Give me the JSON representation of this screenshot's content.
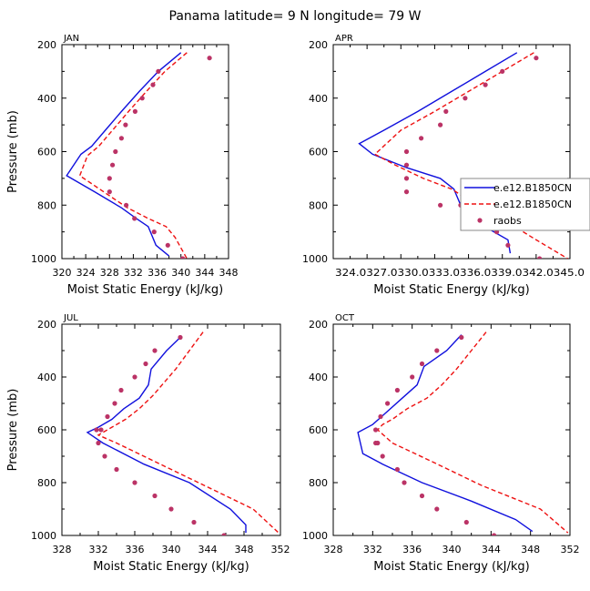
{
  "title": "Panama  latitude= 9 N longitude= 79 W",
  "chart_data": [
    {
      "type": "line",
      "panel": "JAN",
      "xlabel": "Moist Static Energy (kJ/kg)",
      "ylabel": "Pressure (mb)",
      "xlim": [
        320,
        348
      ],
      "ylim": [
        1000,
        200
      ],
      "xticks": [
        320,
        324,
        328,
        332,
        336,
        340,
        344,
        348
      ],
      "xtick_labels": [
        "320",
        "324",
        "328",
        "332",
        "336",
        "340",
        "344",
        "348"
      ],
      "yticks": [
        200,
        400,
        600,
        800,
        1000
      ],
      "yticks_labels": [
        "200",
        "400",
        "600",
        "800",
        "1000"
      ],
      "series": [
        {
          "name": "e.e12.B1850CN",
          "style": "solid",
          "color": "#1010dd",
          "x": [
            340.0,
            336.2,
            333.0,
            330.0,
            327.3,
            325.0,
            323.2,
            320.8,
            325.5,
            330.0,
            332.5,
            334.5,
            335.8,
            338.0
          ],
          "y": [
            230,
            300,
            375,
            450,
            520,
            580,
            610,
            690,
            750,
            810,
            850,
            880,
            950,
            990
          ]
        },
        {
          "name": "e.e12.B1850CN",
          "style": "dashed",
          "color": "#ee1111",
          "x": [
            341.0,
            337.3,
            334.2,
            331.2,
            328.5,
            326.2,
            324.3,
            323.0,
            327.0,
            331.0,
            334.5,
            337.5,
            339.0,
            341.0
          ],
          "y": [
            230,
            300,
            375,
            450,
            520,
            580,
            615,
            690,
            750,
            810,
            850,
            880,
            920,
            1000
          ]
        },
        {
          "name": "raobs",
          "style": "marker",
          "color": "#bb3366",
          "x": [
            344.8,
            336.2,
            335.3,
            333.5,
            332.3,
            330.7,
            330.0,
            329.0,
            328.5,
            328.0,
            328.0,
            330.8,
            332.2,
            335.5,
            337.8,
            340.3
          ],
          "y": [
            250,
            300,
            350,
            400,
            450,
            500,
            550,
            600,
            650,
            700,
            750,
            800,
            850,
            900,
            950,
            1000
          ]
        }
      ]
    },
    {
      "type": "line",
      "panel": "APR",
      "xlabel": "Moist Static Energy (kJ/kg)",
      "ylabel": "",
      "xlim": [
        324.0,
        345.0
      ],
      "ylim": [
        1000,
        200
      ],
      "xticks": [
        324.0,
        327.0,
        330.0,
        333.0,
        336.0,
        339.0,
        342.0,
        345.0
      ],
      "xtick_labels": [
        "324.0",
        "327.0",
        "330.0",
        "333.0",
        "336.0",
        "339.0",
        "342.0",
        "345.0"
      ],
      "tick_label_strip": "324.0327.0330.0333.0336.0339.0342.0345.0",
      "yticks": [
        200,
        400,
        600,
        800,
        1000
      ],
      "yticks_labels": [
        "200",
        "400",
        "600",
        "800",
        "1000"
      ],
      "series": [
        {
          "name": "e.e12.B1850CN",
          "style": "solid",
          "color": "#1010dd",
          "x": [
            340.3,
            337.5,
            334.5,
            331.5,
            328.5,
            326.3,
            327.5,
            330.5,
            333.5,
            334.7,
            335.5,
            337.0,
            339.5,
            339.7
          ],
          "y": [
            230,
            300,
            375,
            450,
            520,
            570,
            610,
            660,
            700,
            740,
            820,
            870,
            930,
            980
          ]
        },
        {
          "name": "e.e12.B1850CN",
          "style": "dashed",
          "color": "#ee1111",
          "x": [
            341.8,
            339.0,
            336.0,
            333.0,
            330.0,
            327.7,
            329.5,
            332.0,
            334.5,
            336.0,
            337.5,
            339.7,
            342.0,
            344.8
          ],
          "y": [
            230,
            300,
            375,
            450,
            520,
            610,
            650,
            700,
            740,
            780,
            820,
            870,
            930,
            1000
          ]
        },
        {
          "name": "raobs",
          "style": "marker",
          "color": "#bb3366",
          "x": [
            342.0,
            339.0,
            337.5,
            335.7,
            334.0,
            333.5,
            331.8,
            330.5,
            330.5,
            330.5,
            330.5,
            333.5,
            335.3,
            336.0,
            338.5,
            339.5,
            342.3
          ],
          "y": [
            250,
            300,
            350,
            400,
            450,
            500,
            550,
            600,
            650,
            700,
            750,
            800,
            800,
            850,
            900,
            950,
            1000
          ]
        }
      ],
      "legend": {
        "entries": [
          "e.e12.B1850CN",
          "e.e12.B1850CN",
          "raobs"
        ],
        "position": "right, overflowing frame"
      }
    },
    {
      "type": "line",
      "panel": "JUL",
      "xlabel": "Moist Static Energy (kJ/kg)",
      "ylabel": "Pressure (mb)",
      "xlim": [
        328,
        352
      ],
      "ylim": [
        1000,
        200
      ],
      "xticks": [
        328,
        332,
        336,
        340,
        344,
        348,
        352
      ],
      "xtick_labels": [
        "328",
        "332",
        "336",
        "340",
        "344",
        "348",
        "352"
      ],
      "yticks": [
        200,
        400,
        600,
        800,
        1000
      ],
      "yticks_labels": [
        "200",
        "400",
        "600",
        "800",
        "1000"
      ],
      "series": [
        {
          "name": "e.e12.B1850CN",
          "style": "solid",
          "color": "#1010dd",
          "x": [
            341.0,
            339.5,
            337.8,
            337.5,
            336.5,
            334.8,
            333.5,
            332.0,
            330.8,
            332.5,
            337.0,
            342.0,
            346.5,
            348.2,
            348.2
          ],
          "y": [
            250,
            300,
            370,
            430,
            480,
            520,
            560,
            590,
            610,
            650,
            730,
            800,
            900,
            960,
            990
          ]
        },
        {
          "name": "e.e12.B1850CN",
          "style": "dashed",
          "color": "#ee1111",
          "x": [
            343.5,
            342.0,
            340.5,
            339.0,
            338.0,
            336.5,
            335.0,
            333.0,
            332.0,
            334.0,
            337.0,
            343.0,
            349.0,
            351.8
          ],
          "y": [
            230,
            300,
            370,
            430,
            470,
            520,
            560,
            600,
            620,
            650,
            700,
            800,
            900,
            990
          ]
        },
        {
          "name": "raobs",
          "style": "marker",
          "color": "#bb3366",
          "x": [
            341.0,
            338.2,
            337.2,
            336.0,
            334.5,
            333.8,
            333.0,
            332.3,
            331.8,
            332.0,
            332.7,
            334.0,
            336.0,
            338.2,
            340.0,
            342.5,
            345.8
          ],
          "y": [
            250,
            300,
            350,
            400,
            450,
            500,
            550,
            600,
            600,
            650,
            700,
            750,
            800,
            850,
            900,
            950,
            1000
          ]
        }
      ]
    },
    {
      "type": "line",
      "panel": "OCT",
      "xlabel": "Moist Static Energy (kJ/kg)",
      "ylabel": "",
      "xlim": [
        328,
        352
      ],
      "ylim": [
        1000,
        200
      ],
      "xticks": [
        328,
        332,
        336,
        340,
        344,
        348,
        352
      ],
      "xtick_labels": [
        "328",
        "332",
        "336",
        "340",
        "344",
        "348",
        "352"
      ],
      "yticks": [
        200,
        400,
        600,
        800,
        1000
      ],
      "yticks_labels": [
        "200",
        "400",
        "600",
        "800",
        "1000"
      ],
      "series": [
        {
          "name": "e.e12.B1850CN",
          "style": "solid",
          "color": "#1010dd",
          "x": [
            341.0,
            339.5,
            337.2,
            336.5,
            335.0,
            333.2,
            332.0,
            330.5,
            331.0,
            333.0,
            337.0,
            342.0,
            346.5,
            348.2
          ],
          "y": [
            240,
            300,
            360,
            430,
            480,
            540,
            580,
            610,
            690,
            730,
            800,
            870,
            940,
            985
          ]
        },
        {
          "name": "e.e12.B1850CN",
          "style": "dashed",
          "color": "#ee1111",
          "x": [
            343.5,
            342.0,
            340.5,
            339.0,
            337.5,
            335.5,
            334.0,
            333.0,
            332.5,
            334.0,
            338.0,
            343.0,
            349.0,
            351.8
          ],
          "y": [
            230,
            300,
            370,
            430,
            480,
            520,
            560,
            580,
            600,
            650,
            720,
            810,
            900,
            990
          ]
        },
        {
          "name": "raobs",
          "style": "marker",
          "color": "#bb3366",
          "x": [
            341.0,
            338.5,
            337.0,
            336.0,
            334.5,
            333.5,
            332.8,
            332.3,
            332.3,
            332.5,
            333.0,
            334.5,
            335.2,
            337.0,
            338.5,
            341.5,
            344.3
          ],
          "y": [
            250,
            300,
            350,
            400,
            450,
            500,
            550,
            600,
            650,
            650,
            700,
            750,
            800,
            850,
            900,
            950,
            1000
          ]
        }
      ]
    }
  ]
}
